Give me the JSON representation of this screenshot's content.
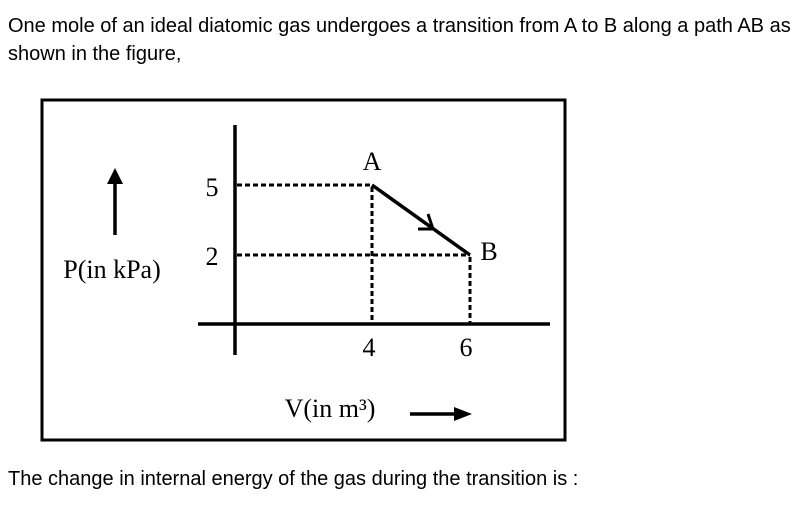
{
  "question": {
    "intro": "One mole of an ideal diatomic gas undergoes a transition from A to B along a path AB as shown in the figure,",
    "prompt": "The change in internal energy of the gas during the transition is :"
  },
  "figure": {
    "y_label": "P(in kPa)",
    "x_label": "V(in m³)",
    "y_ticks": [
      "5",
      "2"
    ],
    "x_ticks": [
      "4",
      "6"
    ],
    "points": [
      "A",
      "B"
    ]
  }
}
